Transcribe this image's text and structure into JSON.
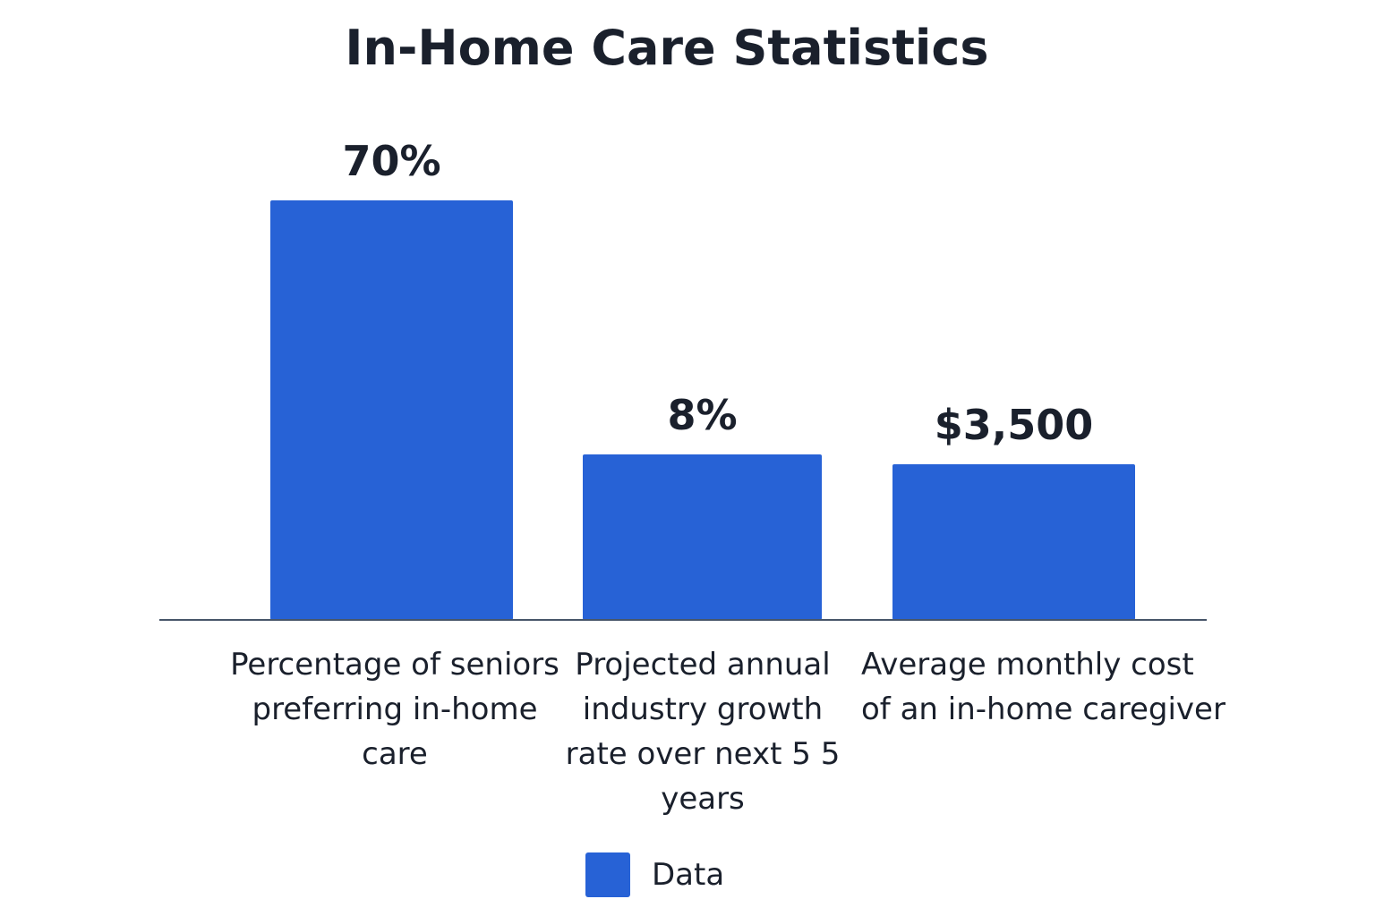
{
  "chart_data": {
    "type": "bar",
    "title": "In-Home Care Statistics",
    "categories": [
      "Percentage of seniors preferring in-home care",
      "Projected annual industry growth rate over next 5 5 years",
      "Average monthly cost of an in-home caregiver"
    ],
    "series": [
      {
        "name": "Data",
        "values": [
          70,
          8,
          3500
        ],
        "value_labels": [
          "70%",
          "8%",
          "$3,500"
        ],
        "color": "#2762d6"
      }
    ],
    "legend": {
      "position": "bottom",
      "entries": [
        "Data"
      ]
    },
    "grid": false,
    "xlabel": "",
    "ylabel": ""
  }
}
